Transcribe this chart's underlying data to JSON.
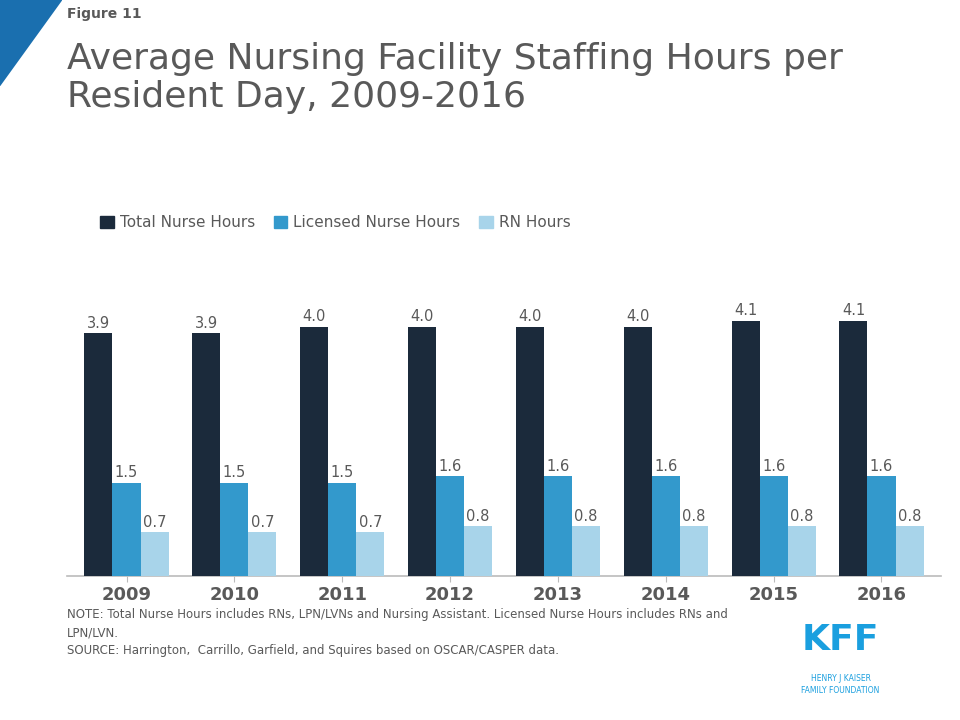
{
  "title_figure": "Figure 11",
  "title_main": "Average Nursing Facility Staffing Hours per\nResident Day, 2009-2016",
  "years": [
    2009,
    2010,
    2011,
    2012,
    2013,
    2014,
    2015,
    2016
  ],
  "total_nurse_hours": [
    3.9,
    3.9,
    4.0,
    4.0,
    4.0,
    4.0,
    4.1,
    4.1
  ],
  "licensed_nurse_hours": [
    1.5,
    1.5,
    1.5,
    1.6,
    1.6,
    1.6,
    1.6,
    1.6
  ],
  "rn_hours": [
    0.7,
    0.7,
    0.7,
    0.8,
    0.8,
    0.8,
    0.8,
    0.8
  ],
  "color_total": "#1b2a3b",
  "color_licensed": "#3399cc",
  "color_rn": "#a8d4ea",
  "legend_labels": [
    "Total Nurse Hours",
    "Licensed Nurse Hours",
    "RN Hours"
  ],
  "note_text": "NOTE: Total Nurse Hours includes RNs, LPN/LVNs and Nursing Assistant. Licensed Nurse Hours includes RNs and\nLPN/LVN.\nSOURCE: Harrington,  Carrillo, Garfield, and Squires based on OSCAR/CASPER data.",
  "bar_width": 0.26,
  "ylim": [
    0,
    5.2
  ],
  "background_color": "#ffffff",
  "text_color": "#595959",
  "kff_blue": "#1a9fdf",
  "triangle_color": "#1a6faf",
  "axis_line_color": "#bbbbbb"
}
